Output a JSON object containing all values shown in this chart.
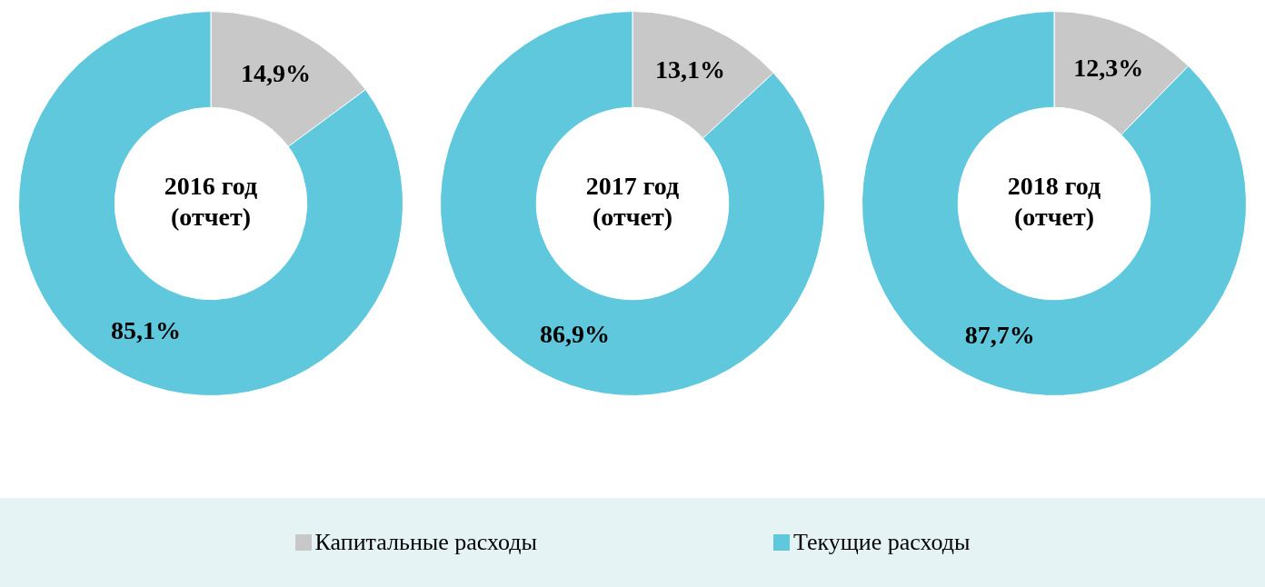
{
  "chart_data": [
    {
      "type": "donut",
      "title": "2016 год (отчет)",
      "categories": [
        "Капитальные расходы",
        "Текущие расходы"
      ],
      "values": [
        14.9,
        85.1
      ],
      "value_labels": [
        "14,9%",
        "85,1%"
      ],
      "colors": [
        "#c8c8c8",
        "#5fc8dc"
      ],
      "legend": "bottom"
    },
    {
      "type": "donut",
      "title": "2017 год (отчет)",
      "categories": [
        null,
        null
      ],
      "values": [
        13.1,
        86.9
      ],
      "value_labels": [
        "13,1%",
        "86,9%"
      ],
      "colors": [
        "#c8c8c8",
        "#5fc8dc"
      ]
    },
    {
      "type": "donut",
      "title": "2018 год (отчет)",
      "categories": [
        null,
        null
      ],
      "values": [
        12.3,
        87.7
      ],
      "value_labels": [
        "12,3%",
        "87,7%"
      ],
      "colors": [
        "#c8c8c8",
        "#5fc8dc"
      ]
    }
  ]
}
